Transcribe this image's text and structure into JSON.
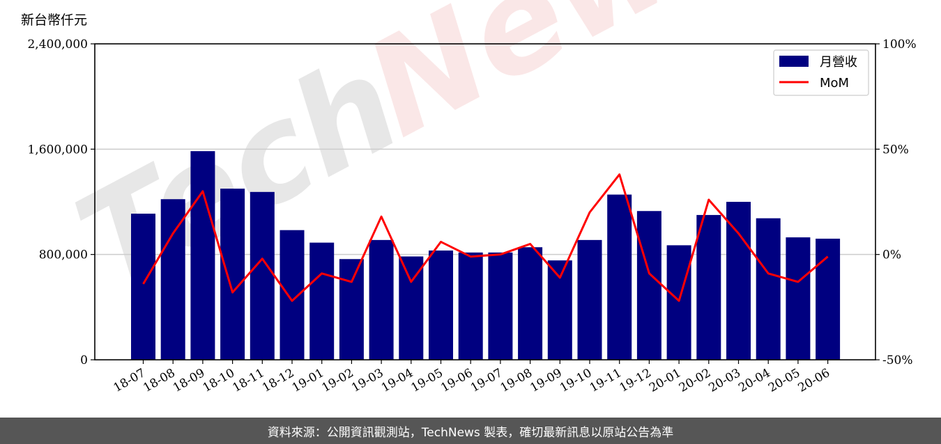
{
  "unit_label": "新台幣仟元",
  "footer_text": "資料來源：公開資訊觀測站，TechNews 製表，確切最新訊息以原站公告為準",
  "watermark": {
    "text_tech": "Tech",
    "text_news": "News"
  },
  "colors": {
    "bar": "#000080",
    "line": "#ff0000",
    "footer_bg": "#565656"
  },
  "chart_data": {
    "type": "bar",
    "categories": [
      "18-07",
      "18-08",
      "18-09",
      "18-10",
      "18-11",
      "18-12",
      "19-01",
      "19-02",
      "19-03",
      "19-04",
      "19-05",
      "19-06",
      "19-07",
      "19-08",
      "19-09",
      "19-10",
      "19-11",
      "19-12",
      "20-01",
      "20-02",
      "20-03",
      "20-04",
      "20-05",
      "20-06"
    ],
    "series": [
      {
        "name": "月營收",
        "type": "bar",
        "axis": "left",
        "values": [
          1110000,
          1220000,
          1585000,
          1300000,
          1275000,
          985000,
          890000,
          765000,
          910000,
          785000,
          830000,
          815000,
          815000,
          855000,
          755000,
          910000,
          1255000,
          1130000,
          870000,
          1100000,
          1200000,
          1075000,
          930000,
          920000
        ]
      },
      {
        "name": "MoM",
        "type": "line",
        "axis": "right",
        "values": [
          -14,
          10,
          30,
          -18,
          -2,
          -22,
          -9,
          -13,
          18,
          -13,
          6,
          -1,
          0,
          5,
          -11,
          20,
          38,
          -9,
          -22,
          26,
          10,
          -9,
          -13,
          -1
        ]
      }
    ],
    "ylim_left": [
      0,
      2400000
    ],
    "yticks_left": [
      "0",
      "800,000",
      "1,600,000",
      "2,400,000"
    ],
    "ylim_right": [
      -50,
      100
    ],
    "yticks_right": [
      "-50%",
      "0%",
      "50%",
      "100%"
    ],
    "grid": "horizontal",
    "legend_position": "top-right"
  }
}
